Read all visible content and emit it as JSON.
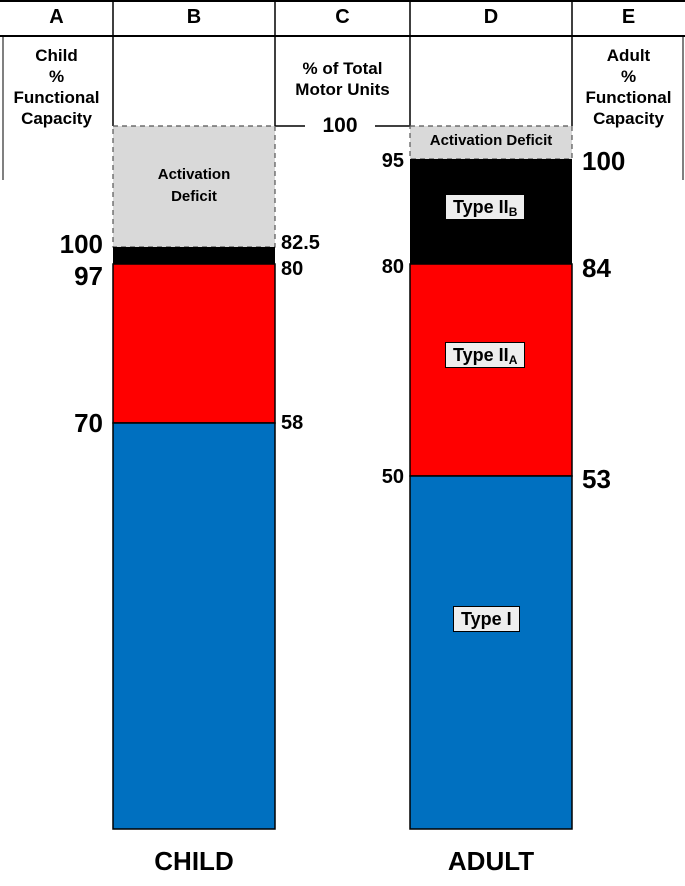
{
  "columns": {
    "a": "A",
    "b": "B",
    "c": "C",
    "d": "D",
    "e": "E",
    "a_title": [
      "Child",
      "%",
      "Functional",
      "Capacity"
    ],
    "c_title": [
      "% of Total",
      "Motor Units"
    ],
    "e_title": [
      "Adult",
      "%",
      "Functional",
      "Capacity"
    ]
  },
  "child": {
    "label": "CHILD",
    "deficit_label": [
      "Activation",
      "Deficit"
    ],
    "functional_ticks": [
      "100",
      "97",
      "70"
    ],
    "motor_unit_ticks": [
      "82.5",
      "80",
      "58"
    ],
    "segments": [
      {
        "name": "Type I",
        "from": 0,
        "to": 58
      },
      {
        "name": "Type IIA",
        "from": 58,
        "to": 80
      },
      {
        "name": "Type IIB",
        "from": 80,
        "to": 82.5
      },
      {
        "name": "Activation Deficit",
        "from": 82.5,
        "to": 100
      }
    ]
  },
  "adult": {
    "label": "ADULT",
    "deficit_label": "Activation Deficit",
    "motor_unit_ticks": [
      "95",
      "80",
      "50"
    ],
    "functional_ticks": [
      "100",
      "84",
      "53"
    ],
    "segments": [
      {
        "name": "Type I",
        "from": 0,
        "to": 50
      },
      {
        "name": "Type IIA",
        "from": 50,
        "to": 80
      },
      {
        "name": "Type IIB",
        "from": 80,
        "to": 95
      },
      {
        "name": "Activation Deficit",
        "from": 95,
        "to": 100
      }
    ],
    "type_labels": {
      "type1": "Type I",
      "type2a_main": "Type II",
      "type2a_sub": "A",
      "type2b_main": "Type II",
      "type2b_sub": "B"
    }
  },
  "shared_tick": "100",
  "colors": {
    "type1": "#0070c0",
    "type2a": "#ff0000",
    "type2b": "#000000",
    "deficit": "#d9d9d9"
  }
}
